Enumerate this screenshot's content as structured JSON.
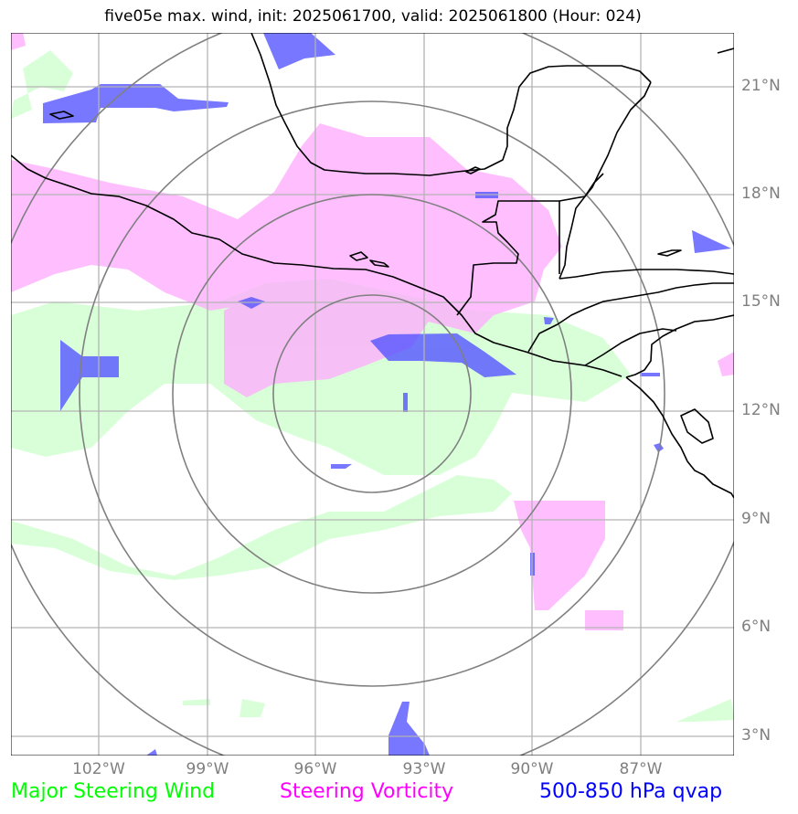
{
  "title": "five05e max. wind, init: 2025061700, valid: 2025061800 (Hour: 024)",
  "latitude_labels": [
    "21°N",
    "18°N",
    "15°N",
    "12°N",
    "9°N",
    "6°N",
    "3°N"
  ],
  "longitude_labels": [
    "102°W",
    "99°W",
    "96°W",
    "93°W",
    "90°W",
    "87°W"
  ],
  "legend": [
    {
      "label": "Major Steering Wind",
      "color": "#00ff00"
    },
    {
      "label": "Steering Vorticity",
      "color": "#ff00ff"
    },
    {
      "label": "500-850 hPa qvap",
      "color": "#0000ff"
    }
  ],
  "colors": {
    "steering_wind_fill": "#ccffcc",
    "vorticity_fill": "#ffaaff",
    "qvap_fill": "#5555ff",
    "gridline": "#b3b3b3",
    "range_rings": "#808080",
    "coastline": "#000000"
  }
}
